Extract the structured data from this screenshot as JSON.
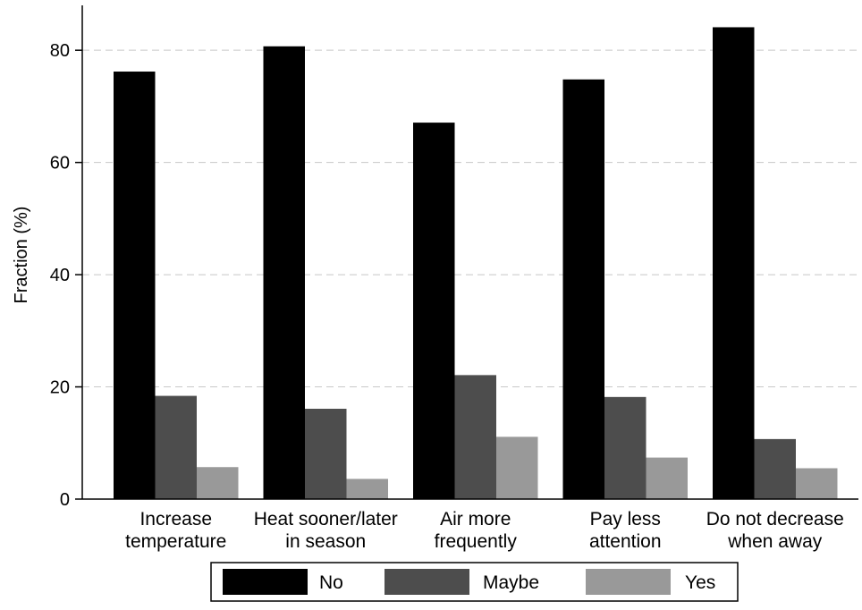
{
  "chart_data": {
    "type": "bar",
    "ylabel": "Fraction (%)",
    "xlabel": "",
    "ylim": [
      0,
      88
    ],
    "yticks": [
      0,
      20,
      40,
      60,
      80
    ],
    "grid": true,
    "legend_position": "bottom",
    "categories": [
      [
        "Increase",
        "temperature"
      ],
      [
        "Heat sooner/later",
        "in season"
      ],
      [
        "Air more",
        "frequently"
      ],
      [
        "Pay less",
        "attention"
      ],
      [
        "Do not decrease",
        "when away"
      ]
    ],
    "series": [
      {
        "name": "No",
        "color": "#000000",
        "values": [
          76.2,
          80.7,
          67.1,
          74.8,
          84.1
        ]
      },
      {
        "name": "Maybe",
        "color": "#4d4d4d",
        "values": [
          18.4,
          16.1,
          22.1,
          18.2,
          10.7
        ]
      },
      {
        "name": "Yes",
        "color": "#999999",
        "values": [
          5.7,
          3.6,
          11.1,
          7.4,
          5.5
        ]
      }
    ]
  }
}
